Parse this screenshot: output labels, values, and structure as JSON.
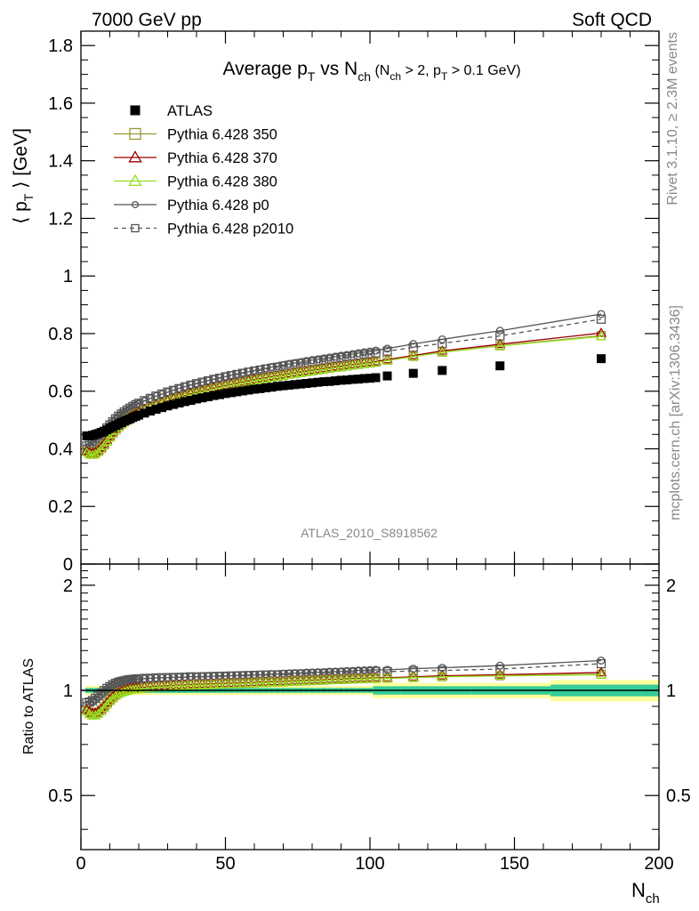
{
  "header": {
    "left": "7000 GeV pp",
    "right": "Soft QCD"
  },
  "side": {
    "rivet": "Rivet 3.1.10, ≥ 2.3M events",
    "mcplots": "mcplots.cern.ch [arXiv:1306.3436]"
  },
  "title": {
    "main": "Average p",
    "main_sub": "T",
    "vs": " vs N",
    "vs_sub": "ch",
    "cond_open": " (N",
    "cond_sub1": "ch",
    "cond_mid": " > 2, p",
    "cond_sub2": "T",
    "cond_close": " > 0.1 GeV)"
  },
  "watermark": "ATLAS_2010_S8918562",
  "ylabel_top": {
    "pre": "⟨ p",
    "sub": "T",
    "post": " ⟩  [GeV]"
  },
  "ylabel_bottom": "Ratio to ATLAS",
  "xlabel": {
    "main": "N",
    "sub": "ch"
  },
  "colors": {
    "atlas": "#000000",
    "p350": "#999933",
    "p370": "#990000",
    "p380": "#99dd22",
    "p0": "#555555",
    "p2010": "#555555",
    "band_inner": "#33cc99",
    "band_outer": "#ffff99"
  },
  "chart_data": {
    "type": "scatter",
    "x_range": [
      0,
      200
    ],
    "y_range_top": [
      0,
      1.85
    ],
    "y_range_bottom": [
      0.35,
      2.3
    ],
    "bottom_log_scale": true,
    "x_ticks": [
      "0",
      "50",
      "100",
      "150",
      "200"
    ],
    "y_ticks_top": [
      "0",
      "0.2",
      "0.4",
      "0.6",
      "0.8",
      "1",
      "1.2",
      "1.4",
      "1.6",
      "1.8"
    ],
    "y_ticks_bottom": [
      "0.5",
      "1",
      "2"
    ],
    "legend_position": "top-left",
    "series": [
      {
        "name": "ATLAS",
        "key": "atlas",
        "marker": "filled-square",
        "x": [
          2,
          3,
          4,
          5,
          6,
          7,
          8,
          9,
          10,
          11,
          12,
          13,
          14,
          15,
          16,
          17,
          18,
          19,
          20,
          22,
          24,
          26,
          28,
          30,
          32,
          34,
          36,
          38,
          40,
          42,
          44,
          46,
          48,
          50,
          52,
          54,
          56,
          58,
          60,
          62,
          64,
          66,
          68,
          70,
          72,
          74,
          76,
          78,
          80,
          82,
          84,
          86,
          88,
          90,
          92,
          94,
          96,
          98,
          100,
          102,
          106,
          115,
          125,
          145,
          180
        ],
        "y": [
          0.445,
          0.445,
          0.447,
          0.45,
          0.453,
          0.457,
          0.461,
          0.466,
          0.471,
          0.476,
          0.481,
          0.486,
          0.491,
          0.496,
          0.5,
          0.504,
          0.509,
          0.513,
          0.517,
          0.524,
          0.531,
          0.537,
          0.543,
          0.549,
          0.554,
          0.559,
          0.564,
          0.568,
          0.573,
          0.577,
          0.581,
          0.585,
          0.588,
          0.592,
          0.595,
          0.598,
          0.601,
          0.604,
          0.607,
          0.609,
          0.612,
          0.614,
          0.617,
          0.619,
          0.621,
          0.623,
          0.625,
          0.627,
          0.629,
          0.631,
          0.633,
          0.634,
          0.636,
          0.638,
          0.639,
          0.641,
          0.642,
          0.644,
          0.645,
          0.647,
          0.653,
          0.662,
          0.672,
          0.688,
          0.713
        ]
      },
      {
        "name": "Pythia 6.428 350",
        "key": "p350",
        "marker": "open-square",
        "line": "solid",
        "x": [
          2,
          3,
          4,
          5,
          6,
          7,
          8,
          9,
          10,
          11,
          12,
          13,
          14,
          15,
          16,
          17,
          18,
          19,
          20,
          22,
          24,
          26,
          28,
          30,
          32,
          34,
          36,
          38,
          40,
          42,
          44,
          46,
          48,
          50,
          52,
          54,
          56,
          58,
          60,
          62,
          64,
          66,
          68,
          70,
          72,
          74,
          76,
          78,
          80,
          82,
          84,
          86,
          88,
          90,
          92,
          94,
          96,
          98,
          100,
          102,
          106,
          115,
          125,
          145,
          180
        ],
        "y": [
          0.39,
          0.385,
          0.383,
          0.386,
          0.392,
          0.402,
          0.414,
          0.428,
          0.442,
          0.455,
          0.467,
          0.477,
          0.486,
          0.494,
          0.501,
          0.508,
          0.514,
          0.519,
          0.524,
          0.533,
          0.542,
          0.55,
          0.557,
          0.564,
          0.571,
          0.577,
          0.583,
          0.589,
          0.594,
          0.599,
          0.604,
          0.609,
          0.614,
          0.618,
          0.622,
          0.626,
          0.63,
          0.634,
          0.638,
          0.642,
          0.645,
          0.649,
          0.652,
          0.655,
          0.659,
          0.662,
          0.665,
          0.668,
          0.671,
          0.674,
          0.677,
          0.68,
          0.683,
          0.685,
          0.688,
          0.691,
          0.693,
          0.696,
          0.698,
          0.701,
          0.708,
          0.721,
          0.736,
          0.758,
          0.793
        ]
      },
      {
        "name": "Pythia 6.428 370",
        "key": "p370",
        "marker": "open-triangle",
        "line": "solid",
        "x": [
          2,
          3,
          4,
          5,
          6,
          7,
          8,
          9,
          10,
          11,
          12,
          13,
          14,
          15,
          16,
          17,
          18,
          19,
          20,
          22,
          24,
          26,
          28,
          30,
          32,
          34,
          36,
          38,
          40,
          42,
          44,
          46,
          48,
          50,
          52,
          54,
          56,
          58,
          60,
          62,
          64,
          66,
          68,
          70,
          72,
          74,
          76,
          78,
          80,
          82,
          84,
          86,
          88,
          90,
          92,
          94,
          96,
          98,
          100,
          102,
          106,
          115,
          125,
          145,
          180
        ],
        "y": [
          0.392,
          0.387,
          0.385,
          0.388,
          0.394,
          0.404,
          0.416,
          0.43,
          0.444,
          0.457,
          0.469,
          0.479,
          0.488,
          0.496,
          0.503,
          0.51,
          0.516,
          0.521,
          0.526,
          0.535,
          0.544,
          0.552,
          0.559,
          0.566,
          0.573,
          0.579,
          0.585,
          0.591,
          0.596,
          0.601,
          0.606,
          0.611,
          0.616,
          0.62,
          0.624,
          0.628,
          0.632,
          0.636,
          0.64,
          0.644,
          0.647,
          0.651,
          0.654,
          0.657,
          0.661,
          0.664,
          0.667,
          0.67,
          0.673,
          0.676,
          0.679,
          0.682,
          0.685,
          0.687,
          0.69,
          0.693,
          0.695,
          0.698,
          0.7,
          0.703,
          0.71,
          0.724,
          0.74,
          0.763,
          0.802
        ]
      },
      {
        "name": "Pythia 6.428 380",
        "key": "p380",
        "marker": "open-triangle",
        "line": "solid",
        "x": [
          2,
          3,
          4,
          5,
          6,
          7,
          8,
          9,
          10,
          11,
          12,
          13,
          14,
          15,
          16,
          17,
          18,
          19,
          20,
          22,
          24,
          26,
          28,
          30,
          32,
          34,
          36,
          38,
          40,
          42,
          44,
          46,
          48,
          50,
          52,
          54,
          56,
          58,
          60,
          62,
          64,
          66,
          68,
          70,
          72,
          74,
          76,
          78,
          80,
          82,
          84,
          86,
          88,
          90,
          92,
          94,
          96,
          98,
          100,
          102,
          106,
          115,
          125,
          145,
          180
        ],
        "y": [
          0.387,
          0.38,
          0.378,
          0.381,
          0.388,
          0.398,
          0.41,
          0.424,
          0.438,
          0.451,
          0.463,
          0.474,
          0.483,
          0.491,
          0.498,
          0.505,
          0.511,
          0.516,
          0.521,
          0.531,
          0.54,
          0.548,
          0.555,
          0.562,
          0.569,
          0.575,
          0.581,
          0.587,
          0.592,
          0.597,
          0.602,
          0.607,
          0.612,
          0.616,
          0.62,
          0.624,
          0.628,
          0.632,
          0.636,
          0.64,
          0.643,
          0.647,
          0.65,
          0.653,
          0.657,
          0.66,
          0.663,
          0.666,
          0.669,
          0.672,
          0.675,
          0.678,
          0.681,
          0.683,
          0.686,
          0.689,
          0.691,
          0.694,
          0.696,
          0.699,
          0.706,
          0.72,
          0.735,
          0.757,
          0.79
        ]
      },
      {
        "name": "Pythia 6.428 p0",
        "key": "p0",
        "marker": "open-circle",
        "line": "solid",
        "x": [
          2,
          3,
          4,
          5,
          6,
          7,
          8,
          9,
          10,
          11,
          12,
          13,
          14,
          15,
          16,
          17,
          18,
          19,
          20,
          22,
          24,
          26,
          28,
          30,
          32,
          34,
          36,
          38,
          40,
          42,
          44,
          46,
          48,
          50,
          52,
          54,
          56,
          58,
          60,
          62,
          64,
          66,
          68,
          70,
          72,
          74,
          76,
          78,
          80,
          82,
          84,
          86,
          88,
          90,
          92,
          94,
          96,
          98,
          100,
          102,
          106,
          115,
          125,
          145,
          180
        ],
        "y": [
          0.405,
          0.408,
          0.415,
          0.424,
          0.434,
          0.446,
          0.458,
          0.47,
          0.482,
          0.493,
          0.503,
          0.512,
          0.52,
          0.527,
          0.534,
          0.54,
          0.546,
          0.552,
          0.557,
          0.566,
          0.575,
          0.583,
          0.59,
          0.597,
          0.604,
          0.61,
          0.616,
          0.622,
          0.627,
          0.632,
          0.637,
          0.642,
          0.647,
          0.651,
          0.656,
          0.66,
          0.664,
          0.668,
          0.672,
          0.676,
          0.68,
          0.684,
          0.687,
          0.691,
          0.695,
          0.698,
          0.701,
          0.705,
          0.708,
          0.711,
          0.714,
          0.717,
          0.72,
          0.723,
          0.726,
          0.729,
          0.732,
          0.735,
          0.738,
          0.741,
          0.748,
          0.764,
          0.78,
          0.81,
          0.868
        ]
      },
      {
        "name": "Pythia 6.428 p2010",
        "key": "p2010",
        "marker": "open-square",
        "line": "dashed",
        "x": [
          2,
          3,
          4,
          5,
          6,
          7,
          8,
          9,
          10,
          11,
          12,
          13,
          14,
          15,
          16,
          17,
          18,
          19,
          20,
          22,
          24,
          26,
          28,
          30,
          32,
          34,
          36,
          38,
          40,
          42,
          44,
          46,
          48,
          50,
          52,
          54,
          56,
          58,
          60,
          62,
          64,
          66,
          68,
          70,
          72,
          74,
          76,
          78,
          80,
          82,
          84,
          86,
          88,
          90,
          92,
          94,
          96,
          98,
          100,
          102,
          106,
          115,
          125,
          145,
          180
        ],
        "y": [
          0.41,
          0.412,
          0.418,
          0.427,
          0.437,
          0.448,
          0.46,
          0.472,
          0.483,
          0.494,
          0.504,
          0.513,
          0.521,
          0.528,
          0.535,
          0.541,
          0.547,
          0.553,
          0.558,
          0.567,
          0.575,
          0.583,
          0.59,
          0.597,
          0.603,
          0.609,
          0.615,
          0.621,
          0.626,
          0.631,
          0.636,
          0.641,
          0.645,
          0.65,
          0.654,
          0.658,
          0.662,
          0.666,
          0.67,
          0.673,
          0.677,
          0.68,
          0.683,
          0.687,
          0.69,
          0.693,
          0.696,
          0.699,
          0.702,
          0.705,
          0.708,
          0.711,
          0.714,
          0.717,
          0.72,
          0.722,
          0.725,
          0.728,
          0.73,
          0.733,
          0.739,
          0.752,
          0.766,
          0.792,
          0.85
        ]
      }
    ]
  }
}
